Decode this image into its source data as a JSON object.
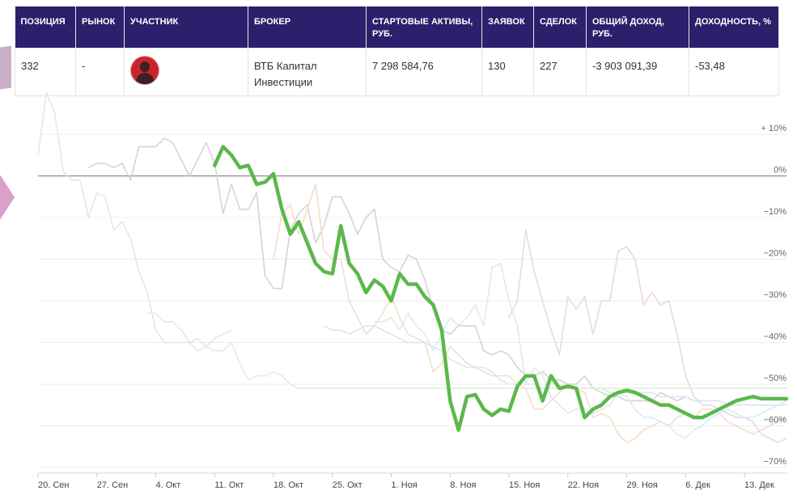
{
  "table": {
    "headers": [
      "ПОЗИЦИЯ",
      "РЫНОК",
      "УЧАСТНИК",
      "БРОКЕР",
      "СТАРТОВЫЕ АКТИВЫ, РУБ.",
      "ЗАЯВОК",
      "СДЕЛОК",
      "ОБЩИЙ ДОХОД, РУБ.",
      "ДОХОДНОСТЬ, %"
    ],
    "row": {
      "position": "332",
      "market": "-",
      "broker": "ВТБ Капитал Инвестиции",
      "start_assets": "7 298 584,76",
      "orders": "130",
      "deals": "227",
      "total_income": "-3 903 091,39",
      "yield": "-53,48"
    }
  },
  "chart_data": {
    "type": "line",
    "title": "",
    "xlabel": "",
    "ylabel": "",
    "ylim": [
      -70,
      10
    ],
    "xlim": [
      0,
      89
    ],
    "grid": true,
    "y_ticks": [
      {
        "value": 10,
        "label": "+ 10%"
      },
      {
        "value": 0,
        "label": "0%"
      },
      {
        "value": -10,
        "label": "−10%"
      },
      {
        "value": -20,
        "label": "−20%"
      },
      {
        "value": -30,
        "label": "−30%"
      },
      {
        "value": -40,
        "label": "−40%"
      },
      {
        "value": -50,
        "label": "−50%"
      },
      {
        "value": -60,
        "label": "−60%"
      },
      {
        "value": -70,
        "label": "−70%"
      }
    ],
    "x_ticks": [
      {
        "value": 0,
        "label": "20. Сен"
      },
      {
        "value": 7,
        "label": "27. Сен"
      },
      {
        "value": 14,
        "label": "4. Окт"
      },
      {
        "value": 21,
        "label": "11. Окт"
      },
      {
        "value": 28,
        "label": "18. Окт"
      },
      {
        "value": 35,
        "label": "25. Окт"
      },
      {
        "value": 42,
        "label": "1. Ноя"
      },
      {
        "value": 49,
        "label": "8. Ноя"
      },
      {
        "value": 56,
        "label": "15. Ноя"
      },
      {
        "value": 63,
        "label": "22. Ноя"
      },
      {
        "value": 70,
        "label": "29. Ноя"
      },
      {
        "value": 77,
        "label": "6. Дек"
      },
      {
        "value": 84,
        "label": "13. Дек"
      }
    ],
    "series": [
      {
        "color": "#e2e6ef",
        "highlight": false,
        "x": [
          0,
          1,
          2,
          3,
          4,
          5,
          6,
          7,
          8,
          9,
          10,
          11,
          12,
          13,
          14,
          15,
          16,
          17,
          18,
          19,
          20,
          21,
          22,
          23
        ],
        "y": [
          5,
          20,
          15,
          1,
          -1,
          -1,
          -10,
          -4,
          -5,
          -13,
          -11,
          -15,
          -23,
          -28,
          -37,
          -40,
          -40,
          -40,
          -40,
          -39,
          -41,
          -39,
          -38,
          -37
        ]
      },
      {
        "color": "#d4d4d4",
        "highlight": false,
        "x": [
          6,
          7,
          8,
          9,
          10,
          11,
          12,
          13,
          14,
          15,
          16,
          17,
          18,
          19,
          20,
          21,
          22,
          23,
          24,
          25,
          26,
          27,
          28,
          29,
          30,
          31,
          32,
          33,
          34,
          35,
          36,
          37,
          38,
          39,
          40,
          41,
          42,
          43,
          44,
          45,
          46,
          47,
          48,
          49,
          50,
          51,
          52,
          53,
          54,
          55,
          56,
          57,
          58,
          59,
          60,
          61,
          62,
          63,
          64,
          65,
          66,
          67,
          68,
          69,
          70,
          71,
          72,
          73,
          74,
          75,
          76,
          77,
          78,
          79
        ],
        "y": [
          2,
          3,
          3,
          2,
          3,
          -1,
          7,
          7,
          7,
          9,
          8,
          4,
          0,
          4,
          8,
          3,
          -9,
          -2,
          -8,
          -8,
          -4,
          -24,
          -27,
          -27,
          -13,
          -9,
          -7,
          -16,
          -12,
          -5,
          -5,
          -9,
          -14,
          -10,
          -8,
          -20,
          -22,
          -23,
          -19,
          -20,
          -25,
          -32,
          -37,
          -38,
          -36,
          -36,
          -36,
          -42,
          -43,
          -42,
          -43,
          -46,
          -48,
          -48,
          -47,
          -49,
          -49,
          -50,
          -50,
          -48,
          -51,
          -52,
          -53,
          -53,
          -54,
          -54,
          -54,
          -54,
          -52,
          -53,
          -54,
          -53,
          -54,
          -54
        ]
      },
      {
        "color": "#e8d7e8",
        "highlight": false,
        "x": [
          56,
          57,
          58,
          59,
          60,
          61,
          62,
          63,
          64,
          65,
          66,
          67,
          68,
          69,
          70,
          71,
          72,
          73,
          74,
          75,
          76,
          77,
          78,
          79,
          80,
          81,
          82,
          83,
          84,
          85,
          86,
          87,
          88,
          89
        ],
        "y": [
          -34,
          -30,
          -13,
          -23,
          -30,
          -37,
          -43,
          -29,
          -32,
          -29,
          -38,
          -30,
          -30,
          -18,
          -17,
          -20,
          -31,
          -28,
          -31,
          -30,
          -38,
          -48,
          -53,
          -55,
          -55,
          -56,
          -57,
          -58,
          -58,
          -59,
          -62,
          -63,
          -64,
          -63
        ]
      },
      {
        "color": "#f5ddc8",
        "highlight": false,
        "x": [
          28,
          29,
          30,
          31,
          32,
          33,
          34,
          35,
          36,
          37,
          38,
          39,
          40,
          41,
          42,
          43,
          44,
          45,
          46,
          47,
          48,
          49,
          50,
          51,
          52,
          53,
          54,
          55,
          56,
          57,
          58,
          59,
          60,
          61,
          62,
          63,
          64,
          65,
          66,
          67,
          68,
          69,
          70,
          71,
          72,
          73,
          74,
          75,
          76,
          77,
          78,
          79,
          80,
          81,
          82,
          83,
          84,
          85,
          86,
          87,
          88,
          89
        ],
        "y": [
          -20,
          -9,
          -7,
          -14,
          -8,
          -2,
          -18,
          -20,
          -20,
          -30,
          -34,
          -38,
          -36,
          -33,
          -29,
          -34,
          -38,
          -39,
          -40,
          -47,
          -45,
          -41,
          -43,
          -45,
          -46,
          -47,
          -48,
          -48,
          -48,
          -50,
          -51,
          -56,
          -56,
          -54,
          -52,
          -50,
          -51,
          -52,
          -58,
          -57,
          -58,
          -62,
          -64,
          -63,
          -61,
          -60,
          -59,
          -60,
          -58,
          -57,
          -58,
          -56,
          -56,
          -57,
          -59,
          -60,
          -61,
          -62,
          -61,
          -60,
          -59,
          -58
        ]
      },
      {
        "color": "#dce5f3",
        "highlight": false,
        "x": [
          34,
          35,
          36,
          37,
          38,
          39,
          40,
          41,
          42,
          43,
          44,
          45,
          46,
          47,
          48,
          49,
          50,
          51,
          52,
          53,
          54,
          55,
          56,
          57,
          58,
          59,
          60,
          61,
          62,
          63,
          64,
          65,
          66,
          67,
          68,
          69,
          70,
          71,
          72,
          73,
          74,
          75,
          76,
          77,
          78,
          79,
          80,
          81,
          82,
          83,
          84,
          85,
          86,
          87,
          88,
          89
        ],
        "y": [
          -36,
          -37,
          -37,
          -38,
          -37,
          -36,
          -36,
          -37,
          -38,
          -39,
          -40,
          -40,
          -40,
          -41,
          -42,
          -44,
          -45,
          -46,
          -46,
          -46,
          -47,
          -49,
          -50,
          -50,
          -50,
          -50,
          -51,
          -51,
          -51,
          -51,
          -51,
          -51,
          -51,
          -51,
          -52,
          -52,
          -52,
          -52,
          -52,
          -52,
          -53,
          -53,
          -53,
          -53,
          -54,
          -54,
          -54,
          -54,
          -55,
          -55,
          -55,
          -55,
          -55,
          -55,
          -55,
          -55
        ]
      },
      {
        "color": "#dde9f5",
        "highlight": false,
        "x": [
          40,
          41,
          42,
          43,
          44,
          45,
          46,
          47,
          48,
          49,
          50,
          51,
          52,
          53,
          54,
          55,
          56,
          57,
          58,
          59,
          60,
          61,
          62,
          63,
          64,
          65,
          66,
          67,
          68,
          69,
          70,
          71,
          72,
          73,
          74,
          75,
          76,
          77,
          78,
          79,
          80,
          81,
          82,
          83,
          84,
          85,
          86,
          87,
          88,
          89
        ],
        "y": [
          -35,
          -35,
          -34,
          -37,
          -33,
          -36,
          -38,
          -42,
          -38,
          -34,
          -36,
          -34,
          -31,
          -36,
          -22,
          -21,
          -30,
          -36,
          -50,
          -46,
          -48,
          -53,
          -55,
          -57,
          -56,
          -56,
          -57,
          -56,
          -55,
          -52,
          -53,
          -56,
          -58,
          -58,
          -59,
          -60,
          -62,
          -63,
          -61,
          -60,
          -58,
          -57,
          -56,
          -57,
          -58,
          -58,
          -57,
          -56,
          -55,
          -54
        ]
      },
      {
        "color": "#dff0d9",
        "highlight": false,
        "x": [
          13,
          14,
          15,
          16,
          17,
          18,
          19,
          20,
          21,
          22,
          23,
          24,
          25,
          26,
          27,
          28,
          29,
          30,
          31,
          32,
          33,
          34,
          35,
          36,
          37,
          38,
          39,
          40,
          41,
          42,
          43,
          44,
          45,
          46,
          47,
          48,
          49,
          50,
          51,
          52,
          53,
          54,
          55,
          56,
          57,
          58,
          59,
          60,
          61,
          62,
          63,
          64,
          65,
          66,
          67,
          68,
          69,
          70,
          71,
          72,
          73,
          74,
          75,
          76,
          77,
          78,
          79,
          80,
          81,
          82,
          83,
          84,
          85,
          86,
          87,
          88,
          89
        ],
        "y": [
          -33,
          -33,
          -35,
          -35,
          -37,
          -40,
          -42,
          -41,
          -42,
          -42,
          -40,
          -45,
          -49,
          -48,
          -48,
          -47,
          -48,
          -50,
          -51,
          -51,
          -51,
          -51,
          -51,
          -51,
          -51,
          -51,
          -51,
          -51,
          -51,
          -51,
          -51,
          -51,
          -51,
          -51,
          -51,
          -51,
          -51,
          -51,
          -51,
          -51,
          -51,
          -51,
          -51,
          -51,
          -51,
          -51,
          -51,
          -51,
          -51,
          -51,
          -51,
          -51,
          -51,
          -51,
          -51,
          -51,
          -51,
          -51,
          -51,
          -51,
          -51,
          -51,
          -51,
          -51,
          -51,
          -51,
          -51,
          -51,
          -51,
          -51,
          -51,
          -51,
          -51,
          -51,
          -51,
          -51,
          -51
        ]
      },
      {
        "color": "#5cb84c",
        "highlight": true,
        "x": [
          21,
          22,
          23,
          24,
          25,
          26,
          27,
          28,
          29,
          30,
          31,
          32,
          33,
          34,
          35,
          36,
          37,
          38,
          39,
          40,
          41,
          42,
          43,
          44,
          45,
          46,
          47,
          48,
          49,
          50,
          51,
          52,
          53,
          54,
          55,
          56,
          57,
          58,
          59,
          60,
          61,
          62,
          63,
          64,
          65,
          66,
          67,
          68,
          69,
          70,
          71,
          72,
          73,
          74,
          75,
          76,
          77,
          78,
          79,
          80,
          81,
          82,
          83,
          84,
          85,
          86,
          87,
          88,
          89
        ],
        "y": [
          2.5,
          7,
          5,
          2,
          2.5,
          -2,
          -1.5,
          0.5,
          -8,
          -14,
          -11,
          -16,
          -21,
          -23,
          -23.5,
          -12,
          -21,
          -23.5,
          -28,
          -25,
          -26.5,
          -30,
          -23.5,
          -26,
          -26,
          -29,
          -31,
          -37,
          -54,
          -61,
          -53,
          -52.5,
          -56,
          -57.5,
          -56,
          -56.5,
          -50.5,
          -48,
          -48,
          -54,
          -48,
          -51,
          -50.5,
          -51,
          -58,
          -56,
          -55,
          -53,
          -52,
          -51.5,
          -52,
          -53,
          -54,
          -55,
          -55,
          -56,
          -57,
          -58,
          -58,
          -57,
          -56,
          -55,
          -54,
          -53.5,
          -53,
          -53.5,
          -53.5,
          -53.5,
          -53.5
        ]
      }
    ]
  }
}
